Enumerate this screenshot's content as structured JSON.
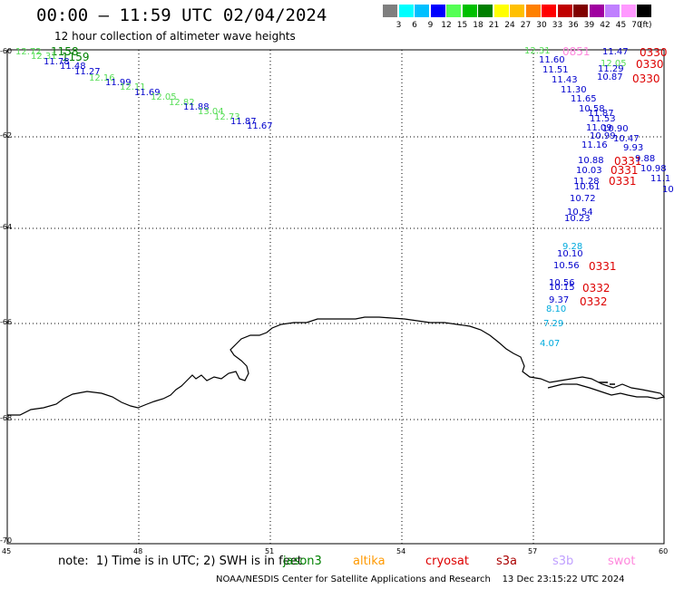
{
  "header": {
    "title": "00:00 – 11:59 UTC 02/04/2024",
    "subtitle": "12 hour collection of altimeter wave heights"
  },
  "legend": {
    "ticks": [
      "3",
      "6",
      "9",
      "12",
      "15",
      "18",
      "21",
      "24",
      "27",
      "30",
      "33",
      "36",
      "39",
      "42",
      "45",
      "70"
    ],
    "unit": "(ft)",
    "colors": [
      "#7f7f7f",
      "#00ffff",
      "#00c0ff",
      "#0000ff",
      "#55ff55",
      "#00c000",
      "#008000",
      "#ffff00",
      "#ffc000",
      "#ff8000",
      "#ff0000",
      "#c00000",
      "#800000",
      "#a000a0",
      "#c080ff",
      "#ff99ff",
      "#000000"
    ]
  },
  "map": {
    "lat_labels": [
      "-60",
      "-62",
      "-64",
      "-66",
      "-68",
      "-70"
    ],
    "lon_labels": [
      "45",
      "48",
      "51",
      "54",
      "57",
      "60"
    ]
  },
  "track_labels": [
    {
      "text": "12.72",
      "color": "#55dd55"
    },
    {
      "text": "1158",
      "color": "#008000"
    },
    {
      "text": "12.31",
      "color": "#55dd55"
    },
    {
      "text": "1159",
      "color": "#008000"
    },
    {
      "text": "11.78",
      "color": "#0000cc"
    },
    {
      "text": "11.48",
      "color": "#0000cc"
    },
    {
      "text": "11.27",
      "color": "#0000cc"
    },
    {
      "text": "12.16",
      "color": "#55dd55"
    },
    {
      "text": "11.99",
      "color": "#0000cc"
    },
    {
      "text": "12.11",
      "color": "#55dd55"
    },
    {
      "text": "11.69",
      "color": "#0000cc"
    },
    {
      "text": "12.05",
      "color": "#55dd55"
    },
    {
      "text": "12.82",
      "color": "#55dd55"
    },
    {
      "text": "11.88",
      "color": "#0000cc"
    },
    {
      "text": "13.04",
      "color": "#55dd55"
    },
    {
      "text": "12.73",
      "color": "#55dd55"
    },
    {
      "text": "11.87",
      "color": "#0000cc"
    },
    {
      "text": "11.67",
      "color": "#0000cc"
    },
    {
      "text": "12.31",
      "color": "#55dd55"
    },
    {
      "text": "0851",
      "color": "#ff88dd"
    },
    {
      "text": "11.47",
      "color": "#0000cc"
    },
    {
      "text": "0330",
      "color": "#dd0000"
    },
    {
      "text": "11.60",
      "color": "#0000cc"
    },
    {
      "text": "12.05",
      "color": "#55dd55"
    },
    {
      "text": "0330",
      "color": "#dd0000"
    },
    {
      "text": "11.51",
      "color": "#0000cc"
    },
    {
      "text": "11.29",
      "color": "#0000cc"
    },
    {
      "text": "11.43",
      "color": "#0000cc"
    },
    {
      "text": "10.87",
      "color": "#0000cc"
    },
    {
      "text": "0330",
      "color": "#dd0000"
    },
    {
      "text": "11.30",
      "color": "#0000cc"
    },
    {
      "text": "11.65",
      "color": "#0000cc"
    },
    {
      "text": "10.58",
      "color": "#0000cc"
    },
    {
      "text": "11.87",
      "color": "#0000cc"
    },
    {
      "text": "11.53",
      "color": "#0000cc"
    },
    {
      "text": "11.09",
      "color": "#0000cc"
    },
    {
      "text": "10.90",
      "color": "#0000cc"
    },
    {
      "text": "10.99",
      "color": "#0000cc"
    },
    {
      "text": "10.47",
      "color": "#0000cc"
    },
    {
      "text": "11.16",
      "color": "#0000cc"
    },
    {
      "text": "9.93",
      "color": "#0000cc"
    },
    {
      "text": "10.88",
      "color": "#0000cc"
    },
    {
      "text": "0331",
      "color": "#dd0000"
    },
    {
      "text": "9.88",
      "color": "#0000cc"
    },
    {
      "text": "10.98",
      "color": "#0000cc"
    },
    {
      "text": "10.03",
      "color": "#0000cc"
    },
    {
      "text": "0331",
      "color": "#dd0000"
    },
    {
      "text": "11.1",
      "color": "#0000cc"
    },
    {
      "text": "11.28",
      "color": "#0000cc"
    },
    {
      "text": "0331",
      "color": "#dd0000"
    },
    {
      "text": "10.61",
      "color": "#0000cc"
    },
    {
      "text": "10",
      "color": "#0000cc"
    },
    {
      "text": "10.72",
      "color": "#0000cc"
    },
    {
      "text": "10.54",
      "color": "#0000cc"
    },
    {
      "text": "10.23",
      "color": "#0000cc"
    },
    {
      "text": "9.28",
      "color": "#00aadd"
    },
    {
      "text": "10.10",
      "color": "#0000cc"
    },
    {
      "text": "10.56",
      "color": "#0000cc"
    },
    {
      "text": "0331",
      "color": "#dd0000"
    },
    {
      "text": "10.56",
      "color": "#0000cc"
    },
    {
      "text": "10.15",
      "color": "#0000cc"
    },
    {
      "text": "0332",
      "color": "#dd0000"
    },
    {
      "text": "9.37",
      "color": "#0000cc"
    },
    {
      "text": "0332",
      "color": "#dd0000"
    },
    {
      "text": "8.10",
      "color": "#00aadd"
    },
    {
      "text": "7.29",
      "color": "#00aadd"
    },
    {
      "text": "4.07",
      "color": "#00aadd"
    }
  ],
  "footer": {
    "note": "note:  1) Time is in UTC; 2) SWH is in feet",
    "credit": "NOAA/NESDIS Center for Satellite Applications and Research    13 Dec 23:15:22 UTC 2024",
    "satellites": [
      {
        "name": "jason3",
        "color": "#008000"
      },
      {
        "name": "altika",
        "color": "#ff9900"
      },
      {
        "name": "cryosat",
        "color": "#dd0000"
      },
      {
        "name": "s3a",
        "color": "#aa0000"
      },
      {
        "name": "s3b",
        "color": "#c0a0ff"
      },
      {
        "name": "swot",
        "color": "#ff88dd"
      }
    ]
  }
}
